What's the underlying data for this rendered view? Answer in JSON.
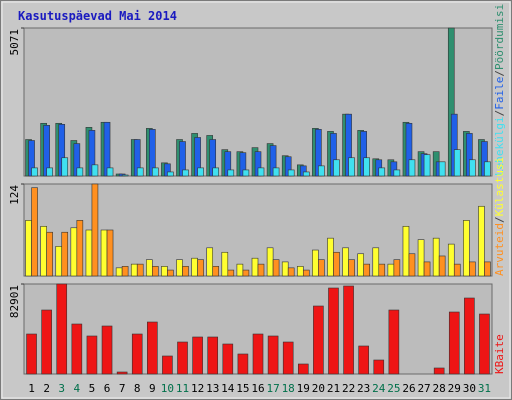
{
  "title": "Kasutuspäevad Mai 2014",
  "categories": [
    "1",
    "2",
    "3",
    "4",
    "5",
    "6",
    "7",
    "8",
    "9",
    "10",
    "11",
    "12",
    "13",
    "14",
    "15",
    "16",
    "17",
    "18",
    "19",
    "20",
    "21",
    "22",
    "23",
    "24",
    "25",
    "26",
    "27",
    "28",
    "29",
    "30",
    "31"
  ],
  "category_colors": [
    "#000000",
    "#000000",
    "#00704a",
    "#00704a",
    "#000000",
    "#000000",
    "#000000",
    "#000000",
    "#000000",
    "#00704a",
    "#00704a",
    "#000000",
    "#000000",
    "#000000",
    "#000000",
    "#000000",
    "#00704a",
    "#00704a",
    "#000000",
    "#000000",
    "#000000",
    "#000000",
    "#000000",
    "#00704a",
    "#00704a",
    "#000000",
    "#000000",
    "#000000",
    "#000000",
    "#000000",
    "#00704a"
  ],
  "legend_separator": "/",
  "chart_data": [
    {
      "type": "bar",
      "ylim": [
        0,
        5071
      ],
      "yticks": [
        5071
      ],
      "series": [
        {
          "name": "Pöördumisi",
          "color": "#2f8f6f",
          "values": [
            1250,
            1806,
            1806,
            1216,
            1667,
            1841,
            69,
            1250,
            1632,
            451,
            1250,
            1459,
            1389,
            903,
            834,
            972,
            1111,
            695,
            382,
            1632,
            1528,
            2119,
            1563,
            590,
            556,
            1841,
            834,
            834,
            5071,
            1528,
            1250
          ]
        },
        {
          "name": "Faile",
          "color": "#2060e8",
          "values": [
            1216,
            1737,
            1771,
            1111,
            1563,
            1841,
            69,
            1250,
            1598,
            417,
            1181,
            1320,
            1250,
            834,
            799,
            834,
            1042,
            660,
            347,
            1598,
            1459,
            2119,
            1528,
            556,
            486,
            1806,
            764,
            486,
            2119,
            1459,
            1181
          ]
        },
        {
          "name": "Lehekülgi",
          "color": "#40e0f0",
          "values": [
            278,
            278,
            625,
            278,
            382,
            278,
            35,
            278,
            278,
            139,
            208,
            278,
            278,
            208,
            208,
            278,
            278,
            208,
            139,
            347,
            556,
            625,
            625,
            278,
            208,
            556,
            729,
            486,
            903,
            556,
            486
          ]
        }
      ]
    },
    {
      "type": "bar",
      "ylim": [
        0,
        124
      ],
      "yticks": [
        124
      ],
      "series": [
        {
          "name": "Külastusi",
          "color": "#ffff30",
          "values": [
            75,
            67,
            40,
            65,
            62,
            62,
            11,
            16,
            22,
            13,
            22,
            24,
            38,
            32,
            16,
            24,
            38,
            19,
            13,
            35,
            51,
            38,
            30,
            38,
            16,
            67,
            49,
            51,
            43,
            75,
            94
          ]
        },
        {
          "name": "Arvuteid",
          "color": "#ff9020",
          "values": [
            119,
            59,
            59,
            75,
            124,
            62,
            13,
            16,
            13,
            8,
            13,
            22,
            13,
            8,
            8,
            16,
            22,
            11,
            8,
            22,
            32,
            22,
            16,
            16,
            22,
            30,
            19,
            27,
            16,
            19,
            19
          ]
        }
      ]
    },
    {
      "type": "bar",
      "ylim": [
        0,
        82901
      ],
      "yticks": [
        82901
      ],
      "series": [
        {
          "name": "KBaite",
          "color": "#ee1515",
          "values": [
            36840,
            58944,
            82901,
            46050,
            35000,
            44210,
            1842,
            36840,
            47890,
            16580,
            29470,
            34080,
            34080,
            27630,
            18420,
            36840,
            35000,
            29470,
            9210,
            62630,
            79210,
            81050,
            25790,
            12890,
            58944,
            0,
            0,
            5530,
            57100,
            70000,
            55260
          ]
        }
      ]
    }
  ]
}
